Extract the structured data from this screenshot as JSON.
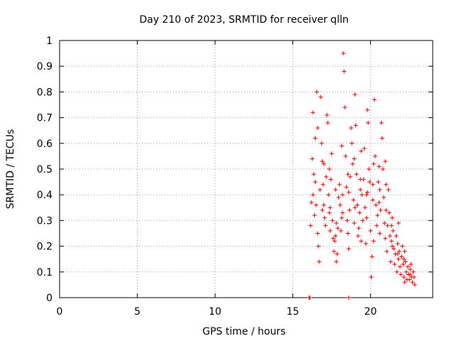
{
  "chart_data": {
    "type": "scatter",
    "title": "Day 210 of 2023, SRMTID for receiver qlln",
    "xlabel": "GPS time / hours",
    "ylabel": "SRMTID / TECUs",
    "xlim": [
      0,
      24
    ],
    "ylim": [
      0,
      1
    ],
    "xticks": [
      0,
      5,
      10,
      15,
      20
    ],
    "xtick_labels": [
      "0",
      "5",
      "10",
      "15",
      "20"
    ],
    "yticks": [
      0,
      0.1,
      0.2,
      0.3,
      0.4,
      0.5,
      0.6,
      0.7,
      0.8,
      0.9,
      1
    ],
    "ytick_labels": [
      "0",
      "0.1",
      "0.2",
      "0.3",
      "0.4",
      "0.5",
      "0.6",
      "0.7",
      "0.8",
      "0.9",
      "1"
    ],
    "grid": true,
    "marker": "+",
    "marker_color": "#dd0000",
    "series": [
      {
        "name": "SRMTID",
        "points": [
          [
            16.05,
            0.0
          ],
          [
            16.1,
            0.0
          ],
          [
            18.6,
            0.0
          ],
          [
            16.15,
            0.28
          ],
          [
            16.2,
            0.37
          ],
          [
            16.25,
            0.54
          ],
          [
            16.3,
            0.72
          ],
          [
            16.35,
            0.48
          ],
          [
            16.4,
            0.32
          ],
          [
            16.45,
            0.62
          ],
          [
            16.5,
            0.36
          ],
          [
            16.55,
            0.8
          ],
          [
            16.6,
            0.66
          ],
          [
            16.65,
            0.2
          ],
          [
            16.7,
            0.14
          ],
          [
            16.75,
            0.42
          ],
          [
            16.8,
            0.78
          ],
          [
            16.85,
            0.6
          ],
          [
            16.9,
            0.53
          ],
          [
            16.95,
            0.44
          ],
          [
            17.0,
            0.36
          ],
          [
            17.05,
            0.31
          ],
          [
            17.1,
            0.28
          ],
          [
            17.15,
            0.47
          ],
          [
            17.2,
            0.71
          ],
          [
            17.25,
            0.68
          ],
          [
            17.3,
            0.4
          ],
          [
            17.35,
            0.33
          ],
          [
            17.4,
            0.26
          ],
          [
            17.45,
            0.46
          ],
          [
            17.5,
            0.56
          ],
          [
            17.55,
            0.3
          ],
          [
            17.6,
            0.23
          ],
          [
            17.65,
            0.18
          ],
          [
            17.7,
            0.22
          ],
          [
            17.75,
            0.24
          ],
          [
            17.8,
            0.14
          ],
          [
            17.85,
            0.17
          ],
          [
            17.9,
            0.27
          ],
          [
            17.95,
            0.39
          ],
          [
            18.0,
            0.44
          ],
          [
            18.05,
            0.36
          ],
          [
            18.1,
            0.26
          ],
          [
            18.15,
            0.31
          ],
          [
            18.2,
            0.33
          ],
          [
            18.25,
            0.95
          ],
          [
            18.3,
            0.88
          ],
          [
            18.35,
            0.74
          ],
          [
            18.4,
            0.55
          ],
          [
            18.45,
            0.43
          ],
          [
            18.5,
            0.3
          ],
          [
            18.55,
            0.25
          ],
          [
            18.6,
            0.19
          ],
          [
            18.65,
            0.34
          ],
          [
            18.7,
            0.47
          ],
          [
            18.75,
            0.66
          ],
          [
            18.8,
            0.6
          ],
          [
            18.85,
            0.52
          ],
          [
            18.9,
            0.38
          ],
          [
            18.95,
            0.29
          ],
          [
            19.0,
            0.79
          ],
          [
            19.05,
            0.67
          ],
          [
            19.1,
            0.48
          ],
          [
            19.15,
            0.36
          ],
          [
            19.2,
            0.24
          ],
          [
            19.25,
            0.27
          ],
          [
            19.3,
            0.33
          ],
          [
            19.35,
            0.42
          ],
          [
            19.4,
            0.57
          ],
          [
            19.45,
            0.4
          ],
          [
            19.5,
            0.3
          ],
          [
            19.55,
            0.46
          ],
          [
            19.6,
            0.58
          ],
          [
            19.65,
            0.35
          ],
          [
            19.7,
            0.21
          ],
          [
            19.75,
            0.31
          ],
          [
            19.8,
            0.73
          ],
          [
            19.85,
            0.68
          ],
          [
            19.9,
            0.5
          ],
          [
            19.95,
            0.45
          ],
          [
            20.0,
            0.26
          ],
          [
            20.05,
            0.08
          ],
          [
            20.1,
            0.16
          ],
          [
            20.15,
            0.38
          ],
          [
            20.2,
            0.52
          ],
          [
            20.25,
            0.77
          ],
          [
            20.3,
            0.55
          ],
          [
            20.35,
            0.36
          ],
          [
            20.4,
            0.28
          ],
          [
            20.45,
            0.32
          ],
          [
            20.5,
            0.45
          ],
          [
            20.55,
            0.51
          ],
          [
            20.6,
            0.42
          ],
          [
            20.65,
            0.34
          ],
          [
            20.7,
            0.68
          ],
          [
            20.75,
            0.62
          ],
          [
            20.8,
            0.5
          ],
          [
            20.85,
            0.39
          ],
          [
            20.9,
            0.29
          ],
          [
            20.95,
            0.23
          ],
          [
            21.0,
            0.34
          ],
          [
            21.05,
            0.18
          ],
          [
            21.1,
            0.28
          ],
          [
            21.15,
            0.42
          ],
          [
            21.2,
            0.33
          ],
          [
            21.25,
            0.24
          ],
          [
            21.3,
            0.14
          ],
          [
            21.35,
            0.22
          ],
          [
            21.4,
            0.31
          ],
          [
            21.45,
            0.26
          ],
          [
            21.5,
            0.19
          ],
          [
            21.55,
            0.13
          ],
          [
            21.6,
            0.17
          ],
          [
            21.65,
            0.24
          ],
          [
            21.7,
            0.1
          ],
          [
            21.75,
            0.21
          ],
          [
            21.8,
            0.29
          ],
          [
            21.85,
            0.18
          ],
          [
            21.9,
            0.12
          ],
          [
            21.95,
            0.09
          ],
          [
            22.0,
            0.16
          ],
          [
            22.05,
            0.2
          ],
          [
            22.1,
            0.13
          ],
          [
            22.15,
            0.08
          ],
          [
            22.2,
            0.06
          ],
          [
            22.25,
            0.14
          ],
          [
            22.3,
            0.1
          ],
          [
            22.35,
            0.07
          ],
          [
            22.4,
            0.12
          ],
          [
            22.45,
            0.09
          ],
          [
            22.5,
            0.07
          ],
          [
            22.55,
            0.11
          ],
          [
            22.6,
            0.13
          ],
          [
            22.65,
            0.08
          ],
          [
            22.7,
            0.06
          ],
          [
            22.75,
            0.1
          ],
          [
            22.8,
            0.08
          ],
          [
            22.85,
            0.05
          ],
          [
            16.3,
            0.4
          ],
          [
            16.6,
            0.25
          ],
          [
            17.0,
            0.52
          ],
          [
            17.4,
            0.35
          ],
          [
            17.8,
            0.29
          ],
          [
            18.2,
            0.4
          ],
          [
            18.6,
            0.41
          ],
          [
            19.0,
            0.35
          ],
          [
            19.4,
            0.22
          ],
          [
            19.8,
            0.41
          ],
          [
            20.2,
            0.22
          ],
          [
            20.6,
            0.25
          ],
          [
            21.0,
            0.44
          ],
          [
            21.4,
            0.2
          ],
          [
            21.8,
            0.15
          ],
          [
            22.2,
            0.18
          ],
          [
            16.45,
            0.45
          ],
          [
            16.9,
            0.34
          ],
          [
            17.35,
            0.5
          ],
          [
            17.75,
            0.42
          ],
          [
            18.15,
            0.59
          ],
          [
            18.55,
            0.48
          ],
          [
            18.95,
            0.54
          ],
          [
            19.35,
            0.46
          ],
          [
            19.75,
            0.4
          ],
          [
            20.15,
            0.44
          ],
          [
            20.55,
            0.37
          ],
          [
            20.95,
            0.53
          ],
          [
            21.35,
            0.28
          ],
          [
            21.75,
            0.17
          ],
          [
            22.15,
            0.15
          ],
          [
            22.55,
            0.09
          ]
        ]
      }
    ]
  }
}
